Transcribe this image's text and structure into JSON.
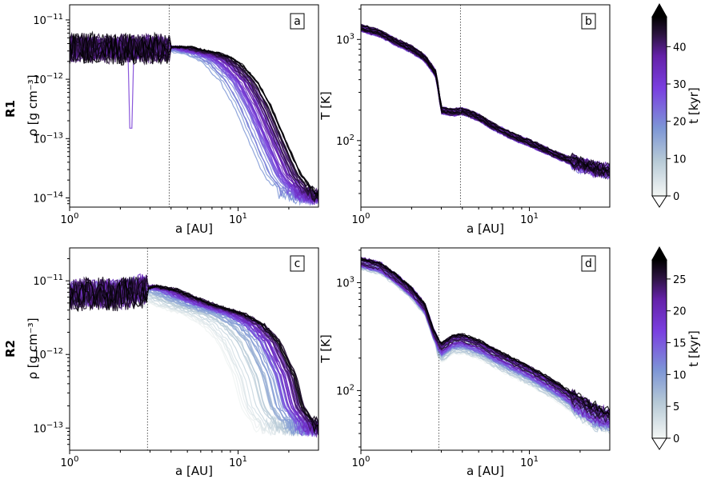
{
  "figure": {
    "row_labels": [
      "R1",
      "R2"
    ],
    "xlabel": "a [AU]",
    "colorbars": [
      {
        "label": "t [kyr]",
        "ticks": [
          0,
          10,
          20,
          30,
          40
        ],
        "max": 48
      },
      {
        "label": "t [kyr]",
        "ticks": [
          0,
          5,
          10,
          15,
          20,
          25
        ],
        "max": 28
      }
    ]
  },
  "chart_data": [
    {
      "id": "a",
      "panel_label": "a",
      "type": "line",
      "row": "R1",
      "xlabel": "a [AU]",
      "ylabel": "ρ [g cm⁻³]",
      "xscale": "log",
      "yscale": "log",
      "xlim": [
        1,
        30
      ],
      "ylim": [
        7e-15,
        1.8e-11
      ],
      "xticks": [
        {
          "value": 1,
          "label": "10^0"
        },
        {
          "value": 10,
          "label": "10^1"
        }
      ],
      "yticks": [
        {
          "value": 1e-14,
          "label": "10^-14"
        },
        {
          "value": 1e-13,
          "label": "10^-13"
        },
        {
          "value": 1e-12,
          "label": "10^-12"
        },
        {
          "value": 1e-11,
          "label": "10^-11"
        }
      ],
      "vline": 3.9,
      "colorbar": 0,
      "n_curves": 48,
      "t_max": 48,
      "template_x": [
        1.0,
        1.5,
        2.0,
        3.0,
        4.0,
        5.0,
        6.0,
        7.0,
        8.0,
        10.0,
        12.0,
        15.0,
        18.0,
        22.0,
        26.0,
        30.0
      ],
      "template_y": [
        3.5e-12,
        3.5e-12,
        3.5e-12,
        3.5e-12,
        3.5e-12,
        3e-12,
        2.7e-12,
        2.3e-12,
        1.8e-12,
        9e-13,
        3.5e-13,
        8e-14,
        2.5e-14,
        1.2e-14,
        1e-14,
        1e-14
      ],
      "edge_earliest": 12,
      "edge_latest": 20,
      "inner_edge": 3.9,
      "floor_noise": 0.35,
      "spike": {
        "x": 2.3,
        "y": 1.5e-13,
        "t": 20
      }
    },
    {
      "id": "b",
      "panel_label": "b",
      "type": "line",
      "row": "R1",
      "xlabel": "a [AU]",
      "ylabel": "T [K]",
      "xscale": "log",
      "yscale": "log",
      "xlim": [
        1,
        30
      ],
      "ylim": [
        22,
        2200
      ],
      "xticks": [
        {
          "value": 1,
          "label": "10^0"
        },
        {
          "value": 10,
          "label": "10^1"
        }
      ],
      "yticks": [
        {
          "value": 100,
          "label": "10^2"
        },
        {
          "value": 1000,
          "label": "10^3"
        }
      ],
      "vline": 3.9,
      "colorbar": 0,
      "n_curves": 48,
      "t_max": 48,
      "template_x": [
        1.0,
        1.3,
        1.6,
        2.0,
        2.4,
        2.8,
        3.0,
        3.5,
        4.0,
        5.0,
        6.0,
        8.0,
        10.0,
        15.0,
        20.0,
        25.0,
        30.0
      ],
      "template_y": [
        1300,
        1150,
        950,
        800,
        650,
        450,
        200,
        190,
        195,
        170,
        140,
        110,
        95,
        70,
        58,
        52,
        50
      ],
      "spread": 0.06
    },
    {
      "id": "c",
      "panel_label": "c",
      "type": "line",
      "row": "R2",
      "xlabel": "a [AU]",
      "ylabel": "ρ [g cm⁻³]",
      "xscale": "log",
      "yscale": "log",
      "xlim": [
        1,
        30
      ],
      "ylim": [
        5e-14,
        2.8e-11
      ],
      "xticks": [
        {
          "value": 1,
          "label": "10^0"
        },
        {
          "value": 10,
          "label": "10^1"
        }
      ],
      "yticks": [
        {
          "value": 1e-13,
          "label": "10^-13"
        },
        {
          "value": 1e-12,
          "label": "10^-12"
        },
        {
          "value": 1e-11,
          "label": "10^-11"
        }
      ],
      "vline": 2.9,
      "colorbar": 1,
      "n_curves": 60,
      "t_max": 28,
      "template_x": [
        1.0,
        1.5,
        2.0,
        2.5,
        3.0,
        4.0,
        5.0,
        7.0,
        10.0,
        13.0,
        16.0,
        20.0,
        22.0,
        25.0,
        28.0,
        30.0
      ],
      "template_y": [
        7e-12,
        7e-12,
        7e-12,
        7.5e-12,
        8.5e-12,
        7.5e-12,
        6e-12,
        4.5e-12,
        3.5e-12,
        2.5e-12,
        1.5e-12,
        5e-13,
        2e-13,
        1.3e-13,
        1e-13,
        1e-13
      ],
      "edge_earliest": 8,
      "edge_latest": 22,
      "inner_edge": 2.9,
      "floor_noise": 0.3
    },
    {
      "id": "d",
      "panel_label": "d",
      "type": "line",
      "row": "R2",
      "xlabel": "a [AU]",
      "ylabel": "T [K]",
      "xscale": "log",
      "yscale": "log",
      "xlim": [
        1,
        30
      ],
      "ylim": [
        28,
        2100
      ],
      "xticks": [
        {
          "value": 1,
          "label": "10^0"
        },
        {
          "value": 10,
          "label": "10^1"
        }
      ],
      "yticks": [
        {
          "value": 100,
          "label": "10^2"
        },
        {
          "value": 1000,
          "label": "10^3"
        }
      ],
      "vline": 2.9,
      "colorbar": 1,
      "n_curves": 60,
      "t_max": 28,
      "template_x": [
        1.0,
        1.3,
        1.6,
        2.0,
        2.4,
        2.7,
        3.0,
        3.5,
        4.0,
        5.0,
        6.0,
        8.0,
        10.0,
        15.0,
        20.0,
        25.0,
        30.0
      ],
      "template_y": [
        1600,
        1450,
        1150,
        850,
        600,
        350,
        260,
        310,
        315,
        280,
        240,
        190,
        160,
        110,
        80,
        65,
        60
      ],
      "early_factor": 0.65,
      "spread": 0.08
    }
  ]
}
